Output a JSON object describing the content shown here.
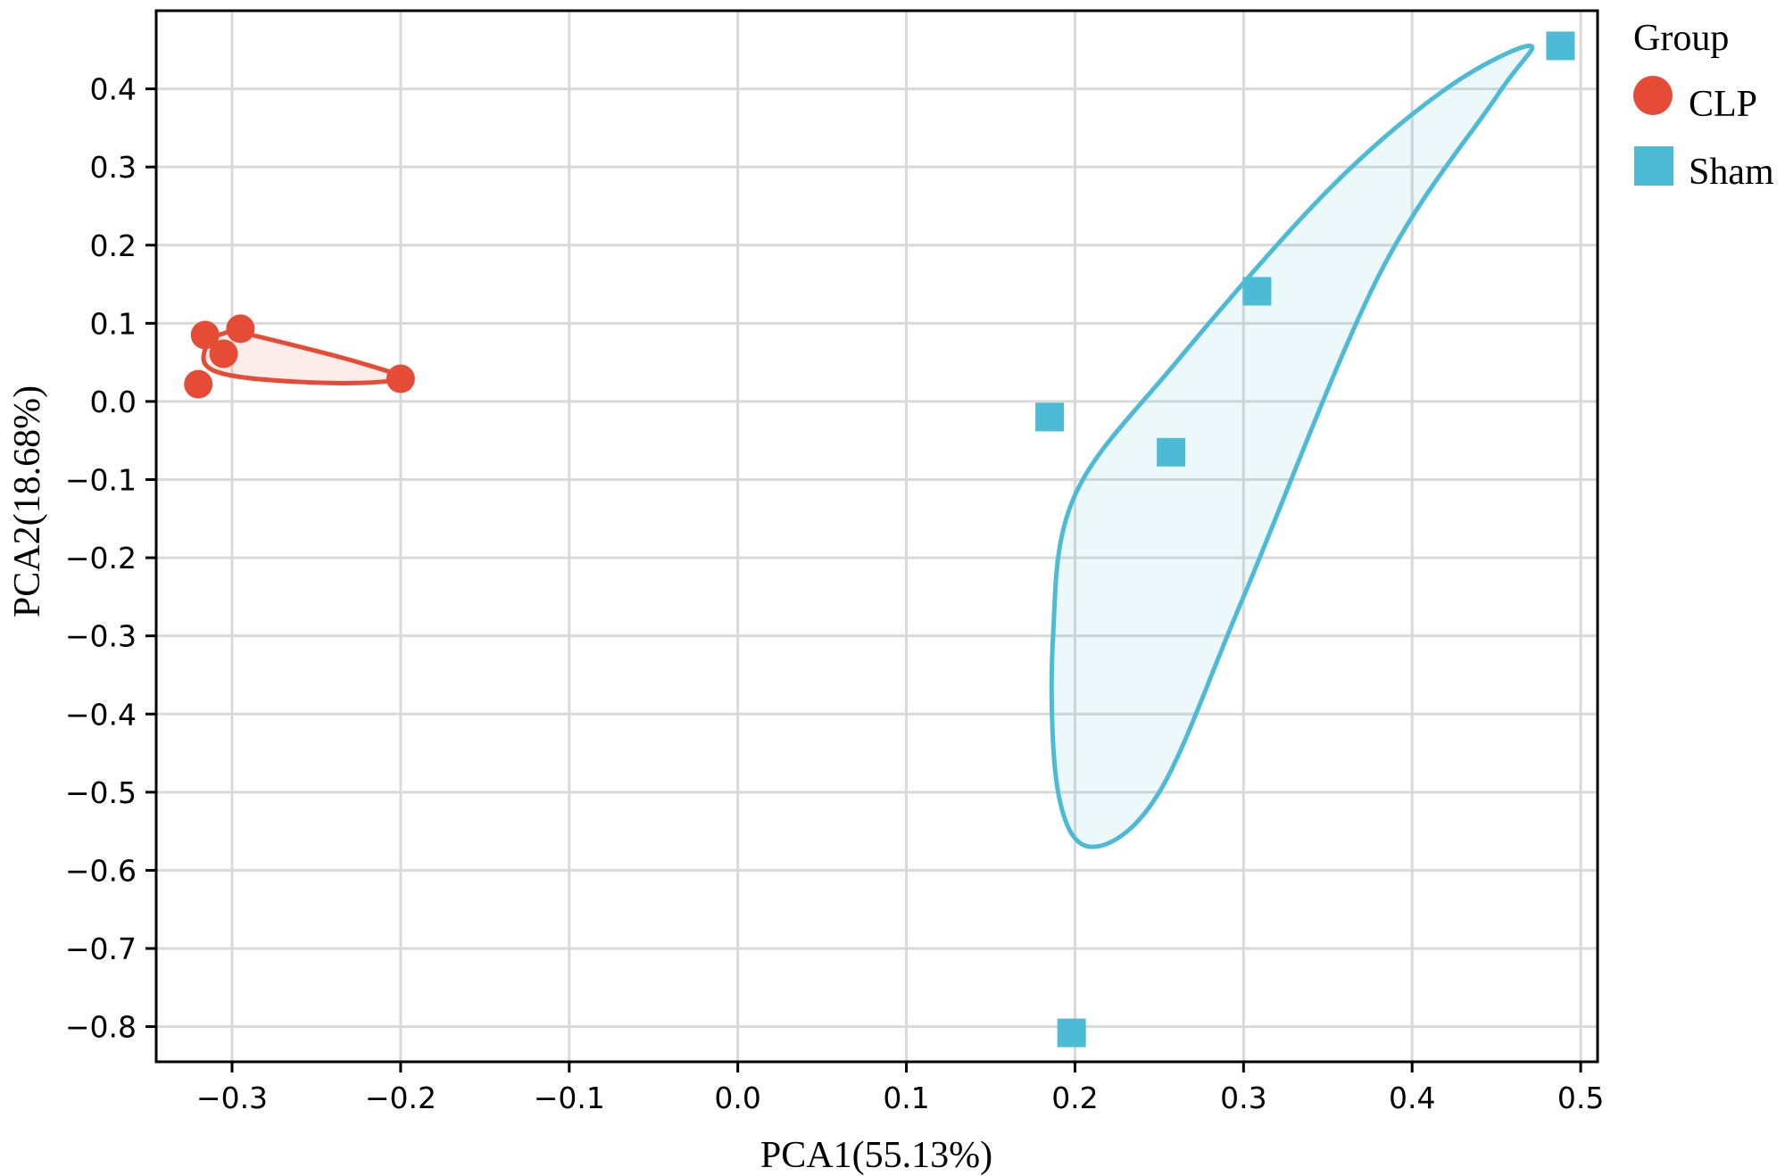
{
  "chart_data": {
    "type": "scatter",
    "xlabel": "PCA1(55.13%)",
    "ylabel": "PCA2(18.68%)",
    "xlim": [
      -0.345,
      0.51
    ],
    "ylim": [
      -0.845,
      0.5
    ],
    "x_ticks": [
      -0.3,
      -0.2,
      -0.1,
      0.0,
      0.1,
      0.2,
      0.3,
      0.4,
      0.5
    ],
    "y_ticks": [
      0.4,
      0.3,
      0.2,
      0.1,
      0.0,
      -0.1,
      -0.2,
      -0.3,
      -0.4,
      -0.5,
      -0.6,
      -0.7,
      -0.8
    ],
    "x_tick_labels": [
      "−0.3",
      "−0.2",
      "−0.1",
      "0.0",
      "0.1",
      "0.2",
      "0.3",
      "0.4",
      "0.5"
    ],
    "y_tick_labels": [
      "0.4",
      "0.3",
      "0.2",
      "0.1",
      "0.0",
      "−0.1",
      "−0.2",
      "−0.3",
      "−0.4",
      "−0.5",
      "−0.6",
      "−0.7",
      "−0.8"
    ],
    "grid": true,
    "legend": {
      "title": "Group",
      "position": "right-top",
      "entries": [
        {
          "name": "CLP",
          "marker": "circle",
          "color": "#e64b35"
        },
        {
          "name": "Sham",
          "marker": "square",
          "color": "#4dbbd5"
        }
      ]
    },
    "series": [
      {
        "name": "CLP",
        "marker": "circle",
        "color": "#e64b35",
        "points": [
          {
            "x": -0.32,
            "y": 0.022
          },
          {
            "x": -0.316,
            "y": 0.085
          },
          {
            "x": -0.305,
            "y": 0.061
          },
          {
            "x": -0.295,
            "y": 0.093
          },
          {
            "x": -0.2,
            "y": 0.029
          }
        ],
        "ellipse": [
          [
            -0.295,
            0.088
          ],
          [
            -0.26,
            0.07
          ],
          [
            -0.225,
            0.05
          ],
          [
            -0.2,
            0.031
          ],
          [
            -0.22,
            0.024
          ],
          [
            -0.26,
            0.025
          ],
          [
            -0.3,
            0.033
          ],
          [
            -0.316,
            0.048
          ],
          [
            -0.314,
            0.076
          ],
          [
            -0.305,
            0.087
          ]
        ]
      },
      {
        "name": "Sham",
        "marker": "square",
        "color": "#4dbbd5",
        "points": [
          {
            "x": 0.488,
            "y": 0.455
          },
          {
            "x": 0.308,
            "y": 0.141
          },
          {
            "x": 0.185,
            "y": -0.02
          },
          {
            "x": 0.257,
            "y": -0.065
          },
          {
            "x": 0.198,
            "y": -0.808
          }
        ],
        "ellipse": [
          [
            0.47,
            0.455
          ],
          [
            0.45,
            0.39
          ],
          [
            0.38,
            0.16
          ],
          [
            0.3,
            -0.25
          ],
          [
            0.25,
            -0.5
          ],
          [
            0.21,
            -0.57
          ],
          [
            0.19,
            -0.5
          ],
          [
            0.187,
            -0.3
          ],
          [
            0.2,
            -0.12
          ],
          [
            0.26,
            0.05
          ],
          [
            0.35,
            0.27
          ],
          [
            0.42,
            0.4
          ]
        ]
      }
    ]
  }
}
